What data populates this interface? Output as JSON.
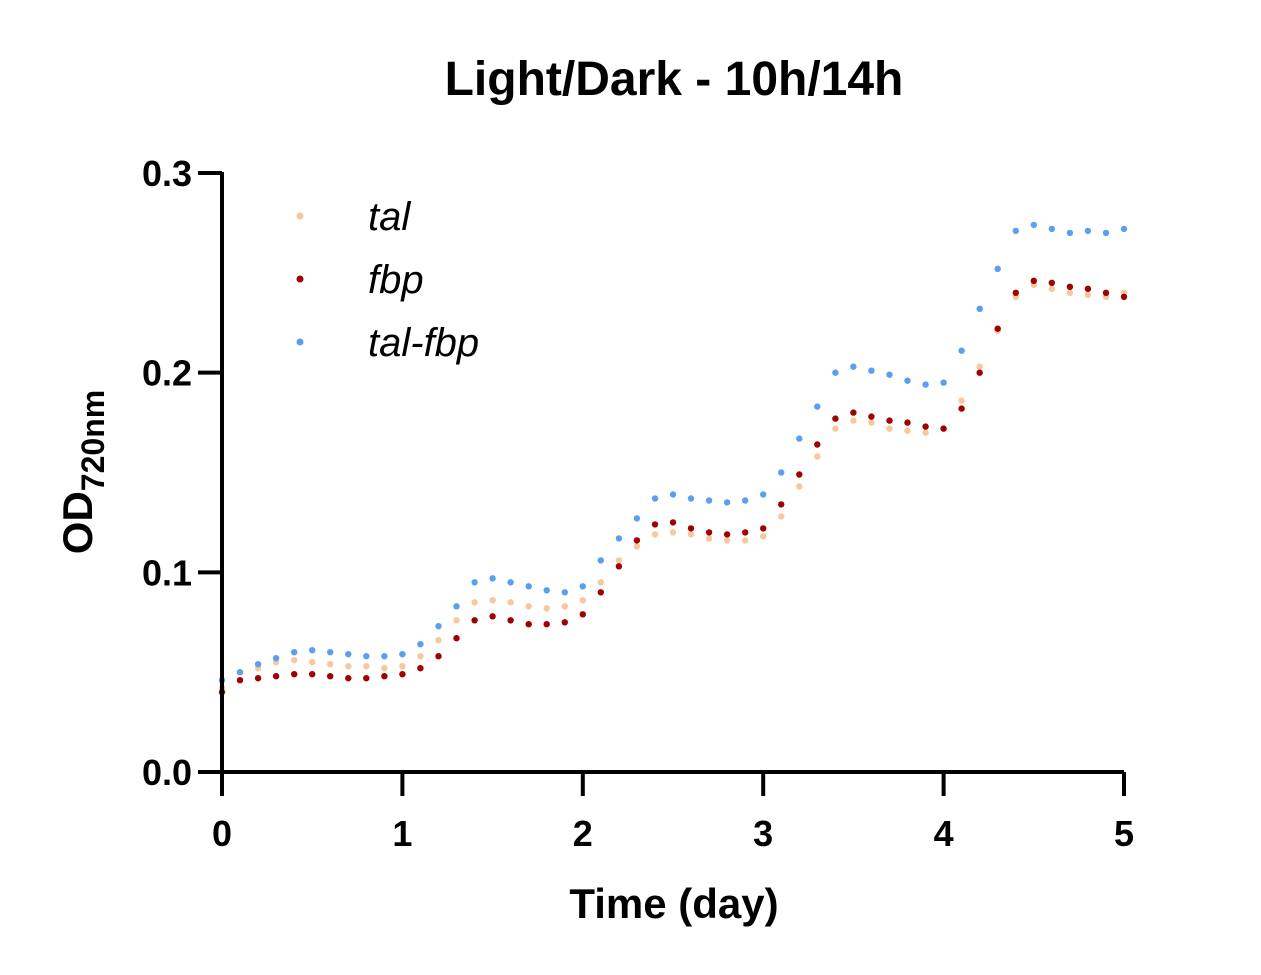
{
  "chart_data": {
    "type": "scatter",
    "title": "Light/Dark - 10h/14h",
    "xlabel": "Time (day)",
    "ylabel_main": "OD",
    "ylabel_sub": "720nm",
    "xlim": [
      0,
      5
    ],
    "ylim": [
      0,
      0.3
    ],
    "x_ticks": [
      "0",
      "1",
      "2",
      "3",
      "4",
      "5"
    ],
    "y_ticks": [
      "0.0",
      "0.1",
      "0.2",
      "0.3"
    ],
    "grid": false,
    "legend_position": "top-left",
    "series": [
      {
        "name": "tal",
        "color": "#f9c79c",
        "points": [
          [
            0.0,
            0.042
          ],
          [
            0.1,
            0.05
          ],
          [
            0.2,
            0.052
          ],
          [
            0.3,
            0.055
          ],
          [
            0.4,
            0.056
          ],
          [
            0.5,
            0.055
          ],
          [
            0.6,
            0.054
          ],
          [
            0.7,
            0.053
          ],
          [
            0.8,
            0.053
          ],
          [
            0.9,
            0.052
          ],
          [
            1.0,
            0.053
          ],
          [
            1.1,
            0.058
          ],
          [
            1.2,
            0.066
          ],
          [
            1.3,
            0.076
          ],
          [
            1.4,
            0.085
          ],
          [
            1.5,
            0.086
          ],
          [
            1.6,
            0.085
          ],
          [
            1.7,
            0.083
          ],
          [
            1.8,
            0.082
          ],
          [
            1.9,
            0.083
          ],
          [
            2.0,
            0.086
          ],
          [
            2.1,
            0.095
          ],
          [
            2.2,
            0.106
          ],
          [
            2.3,
            0.113
          ],
          [
            2.4,
            0.119
          ],
          [
            2.5,
            0.12
          ],
          [
            2.6,
            0.119
          ],
          [
            2.7,
            0.117
          ],
          [
            2.8,
            0.116
          ],
          [
            2.9,
            0.116
          ],
          [
            3.0,
            0.118
          ],
          [
            3.1,
            0.128
          ],
          [
            3.2,
            0.143
          ],
          [
            3.3,
            0.158
          ],
          [
            3.4,
            0.172
          ],
          [
            3.5,
            0.176
          ],
          [
            3.6,
            0.175
          ],
          [
            3.7,
            0.172
          ],
          [
            3.8,
            0.171
          ],
          [
            3.9,
            0.17
          ],
          [
            4.0,
            0.172
          ],
          [
            4.1,
            0.186
          ],
          [
            4.2,
            0.203
          ],
          [
            4.3,
            0.221
          ],
          [
            4.4,
            0.238
          ],
          [
            4.5,
            0.244
          ],
          [
            4.6,
            0.242
          ],
          [
            4.7,
            0.24
          ],
          [
            4.8,
            0.239
          ],
          [
            4.9,
            0.238
          ],
          [
            5.0,
            0.24
          ]
        ]
      },
      {
        "name": "fbp",
        "color": "#a00000",
        "points": [
          [
            0.0,
            0.04
          ],
          [
            0.1,
            0.046
          ],
          [
            0.2,
            0.047
          ],
          [
            0.3,
            0.048
          ],
          [
            0.4,
            0.049
          ],
          [
            0.5,
            0.049
          ],
          [
            0.6,
            0.048
          ],
          [
            0.7,
            0.047
          ],
          [
            0.8,
            0.047
          ],
          [
            0.9,
            0.048
          ],
          [
            1.0,
            0.049
          ],
          [
            1.1,
            0.052
          ],
          [
            1.2,
            0.058
          ],
          [
            1.3,
            0.067
          ],
          [
            1.4,
            0.076
          ],
          [
            1.5,
            0.078
          ],
          [
            1.6,
            0.076
          ],
          [
            1.7,
            0.074
          ],
          [
            1.8,
            0.074
          ],
          [
            1.9,
            0.075
          ],
          [
            2.0,
            0.079
          ],
          [
            2.1,
            0.09
          ],
          [
            2.2,
            0.103
          ],
          [
            2.3,
            0.116
          ],
          [
            2.4,
            0.124
          ],
          [
            2.5,
            0.125
          ],
          [
            2.6,
            0.122
          ],
          [
            2.7,
            0.12
          ],
          [
            2.8,
            0.119
          ],
          [
            2.9,
            0.12
          ],
          [
            3.0,
            0.122
          ],
          [
            3.1,
            0.134
          ],
          [
            3.2,
            0.149
          ],
          [
            3.3,
            0.164
          ],
          [
            3.4,
            0.177
          ],
          [
            3.5,
            0.18
          ],
          [
            3.6,
            0.178
          ],
          [
            3.7,
            0.176
          ],
          [
            3.8,
            0.175
          ],
          [
            3.9,
            0.173
          ],
          [
            4.0,
            0.172
          ],
          [
            4.1,
            0.182
          ],
          [
            4.2,
            0.2
          ],
          [
            4.3,
            0.222
          ],
          [
            4.4,
            0.24
          ],
          [
            4.5,
            0.246
          ],
          [
            4.6,
            0.245
          ],
          [
            4.7,
            0.243
          ],
          [
            4.8,
            0.242
          ],
          [
            4.9,
            0.24
          ],
          [
            5.0,
            0.238
          ]
        ]
      },
      {
        "name": "tal-fbp",
        "color": "#5a9ff0",
        "points": [
          [
            0.0,
            0.046
          ],
          [
            0.1,
            0.05
          ],
          [
            0.2,
            0.054
          ],
          [
            0.3,
            0.057
          ],
          [
            0.4,
            0.06
          ],
          [
            0.5,
            0.061
          ],
          [
            0.6,
            0.06
          ],
          [
            0.7,
            0.059
          ],
          [
            0.8,
            0.058
          ],
          [
            0.9,
            0.058
          ],
          [
            1.0,
            0.059
          ],
          [
            1.1,
            0.064
          ],
          [
            1.2,
            0.073
          ],
          [
            1.3,
            0.083
          ],
          [
            1.4,
            0.095
          ],
          [
            1.5,
            0.097
          ],
          [
            1.6,
            0.095
          ],
          [
            1.7,
            0.093
          ],
          [
            1.8,
            0.091
          ],
          [
            1.9,
            0.09
          ],
          [
            2.0,
            0.093
          ],
          [
            2.1,
            0.106
          ],
          [
            2.2,
            0.117
          ],
          [
            2.3,
            0.127
          ],
          [
            2.4,
            0.137
          ],
          [
            2.5,
            0.139
          ],
          [
            2.6,
            0.137
          ],
          [
            2.7,
            0.136
          ],
          [
            2.8,
            0.135
          ],
          [
            2.9,
            0.136
          ],
          [
            3.0,
            0.139
          ],
          [
            3.1,
            0.15
          ],
          [
            3.2,
            0.167
          ],
          [
            3.3,
            0.183
          ],
          [
            3.4,
            0.2
          ],
          [
            3.5,
            0.203
          ],
          [
            3.6,
            0.201
          ],
          [
            3.7,
            0.199
          ],
          [
            3.8,
            0.196
          ],
          [
            3.9,
            0.194
          ],
          [
            4.0,
            0.195
          ],
          [
            4.1,
            0.211
          ],
          [
            4.2,
            0.232
          ],
          [
            4.3,
            0.252
          ],
          [
            4.4,
            0.271
          ],
          [
            4.5,
            0.274
          ],
          [
            4.6,
            0.272
          ],
          [
            4.7,
            0.27
          ],
          [
            4.8,
            0.271
          ],
          [
            4.9,
            0.27
          ],
          [
            5.0,
            0.272
          ]
        ]
      }
    ]
  }
}
